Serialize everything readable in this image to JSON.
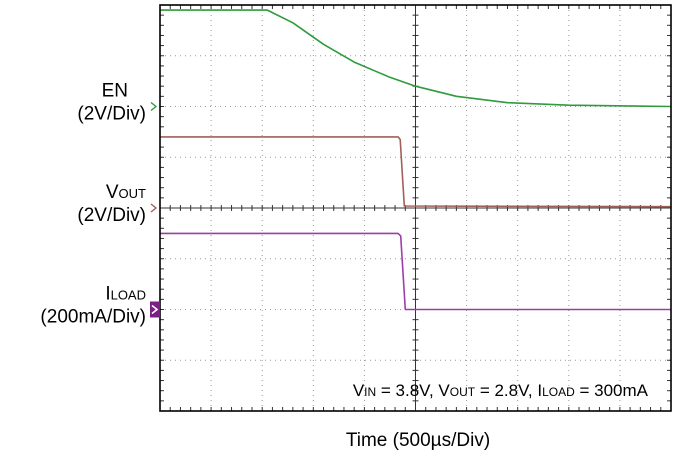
{
  "chart_data": {
    "type": "line",
    "x_unit": "µs",
    "x_range": [
      -2500,
      2500
    ],
    "time_per_div_us": 500,
    "divisions": {
      "x": 10,
      "y": 8
    },
    "grid": true,
    "xlabel": "Time  (500µs/Div)",
    "annotation": {
      "parts": [
        {
          "text": "V",
          "sub": false
        },
        {
          "text": "IN",
          "sub": true
        },
        {
          "text": " = 3.8V, V",
          "sub": false
        },
        {
          "text": "OUT",
          "sub": true
        },
        {
          "text": " = 2.8V, I",
          "sub": false
        },
        {
          "text": "LOAD",
          "sub": true
        },
        {
          "text": " = 300mA",
          "sub": false
        }
      ]
    },
    "channels": [
      {
        "name_main": "EN",
        "name_sub": "",
        "scale": "(2V/Div)",
        "color": "#2e9b3c",
        "marker_color": "#2e9b3c",
        "marker_filled": false,
        "ground_div": 2.0,
        "points": [
          [
            -2500,
            3.8
          ],
          [
            -1450,
            3.8
          ],
          [
            -1200,
            3.3
          ],
          [
            -900,
            2.45
          ],
          [
            -600,
            1.75
          ],
          [
            -250,
            1.15
          ],
          [
            0,
            0.8
          ],
          [
            400,
            0.4
          ],
          [
            900,
            0.15
          ],
          [
            1500,
            0.05
          ],
          [
            2500,
            0.0
          ]
        ]
      },
      {
        "name_main": "V",
        "name_sub": "OUT",
        "scale": "(2V/Div)",
        "color": "#a0605a",
        "marker_color": "#a0605a",
        "marker_filled": false,
        "ground_div": 0.0,
        "points": [
          [
            -2500,
            2.8
          ],
          [
            -170,
            2.8
          ],
          [
            -150,
            2.7
          ],
          [
            -110,
            0.08
          ],
          [
            2500,
            0.05
          ]
        ]
      },
      {
        "name_main": "I",
        "name_sub": "LOAD",
        "scale": "(200mA/Div)",
        "color": "#9b3fa8",
        "marker_color": "#7b1f86",
        "marker_filled": true,
        "ground_div": -2.0,
        "points": [
          [
            -2500,
            300
          ],
          [
            -170,
            300
          ],
          [
            -145,
            290
          ],
          [
            -100,
            0
          ],
          [
            2500,
            0
          ]
        ]
      }
    ]
  },
  "colors": {
    "grid": "#9a9a9a",
    "frame": "#000000",
    "background": "#ffffff"
  }
}
